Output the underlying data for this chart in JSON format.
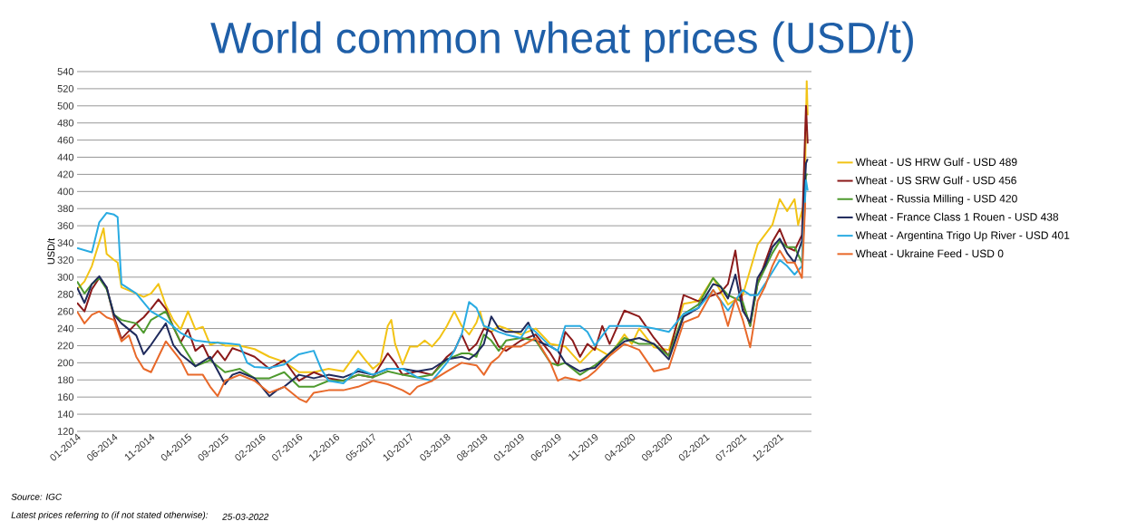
{
  "chart_data": {
    "type": "line",
    "title": "World common wheat prices (USD/t)",
    "ylabel": "USD/t",
    "annotations": [
      "Source: IGC",
      "Latest prices referring to (if not stated otherwise):",
      "25-03-2022"
    ],
    "xlim": [
      "2014-01",
      "2022-04-10"
    ],
    "ylim": [
      120,
      540
    ],
    "yticks": [
      120,
      140,
      160,
      180,
      200,
      220,
      240,
      260,
      280,
      300,
      320,
      340,
      360,
      380,
      400,
      420,
      440,
      460,
      480,
      500,
      520,
      540
    ],
    "xticks": [
      {
        "value": "2014-01",
        "label": "01-2014"
      },
      {
        "value": "2014-06",
        "label": "06-2014"
      },
      {
        "value": "2014-11",
        "label": "11-2014"
      },
      {
        "value": "2015-04",
        "label": "04-2015"
      },
      {
        "value": "2015-09",
        "label": "09-2015"
      },
      {
        "value": "2016-02",
        "label": "02-2016"
      },
      {
        "value": "2016-07",
        "label": "07-2016"
      },
      {
        "value": "2016-12",
        "label": "12-2016"
      },
      {
        "value": "2017-05",
        "label": "05-2017"
      },
      {
        "value": "2017-10",
        "label": "10-2017"
      },
      {
        "value": "2018-03",
        "label": "03-2018"
      },
      {
        "value": "2018-08",
        "label": "08-2018"
      },
      {
        "value": "2019-01",
        "label": "01-2019"
      },
      {
        "value": "2019-06",
        "label": "06-2019"
      },
      {
        "value": "2019-11",
        "label": "11-2019"
      },
      {
        "value": "2020-04",
        "label": "04-2020"
      },
      {
        "value": "2020-09",
        "label": "09-2020"
      },
      {
        "value": "2021-02",
        "label": "02-2021"
      },
      {
        "value": "2021-07",
        "label": "07-2021"
      },
      {
        "value": "2021-12",
        "label": "12-2021"
      }
    ],
    "grid": "y",
    "legend": "right",
    "series": [
      {
        "name": "Wheat - US HRW Gulf - USD 489",
        "color": "#f2c314",
        "x": [
          "2014-01",
          "2014-02",
          "2014-03",
          "2014-04",
          "2014-04-19",
          "2014-05",
          "2014-06",
          "2014-06-16",
          "2014-07",
          "2014-09",
          "2014-10",
          "2014-11",
          "2014-12",
          "2015-01",
          "2015-02",
          "2015-03",
          "2015-04",
          "2015-05",
          "2015-06",
          "2015-07",
          "2015-08",
          "2015-09",
          "2015-11",
          "2016-01",
          "2016-03",
          "2016-05",
          "2016-07",
          "2016-09",
          "2016-11",
          "2017-01",
          "2017-03",
          "2017-04",
          "2017-05",
          "2017-06",
          "2017-07",
          "2017-07-16",
          "2017-08",
          "2017-09",
          "2017-10",
          "2017-11",
          "2017-12",
          "2018-01",
          "2018-02",
          "2018-03",
          "2018-04",
          "2018-05",
          "2018-06",
          "2018-07",
          "2018-07-16",
          "2018-08",
          "2018-09",
          "2018-10",
          "2018-11",
          "2019-01",
          "2019-03",
          "2019-05",
          "2019-07",
          "2019-09",
          "2019-11",
          "2020-01",
          "2020-03",
          "2020-04",
          "2020-05",
          "2020-07",
          "2020-09",
          "2020-11",
          "2021-01",
          "2021-03",
          "2021-05",
          "2021-07",
          "2021-09",
          "2021-11",
          "2021-12",
          "2022-01",
          "2022-02",
          "2022-02-16",
          "2022-03",
          "2022-03-12",
          "2022-03-21",
          "2022-03-25"
        ],
        "values": [
          286,
          295,
          313,
          341,
          357,
          327,
          320,
          317,
          288,
          281,
          277,
          281,
          292,
          267,
          250,
          239,
          260,
          239,
          242,
          221,
          224,
          220,
          220,
          216,
          207,
          201,
          189,
          189,
          193,
          190,
          214,
          203,
          193,
          200,
          243,
          250,
          222,
          198,
          219,
          219,
          226,
          219,
          229,
          243,
          260,
          243,
          233,
          247,
          260,
          243,
          236,
          243,
          240,
          233,
          240,
          222,
          219,
          200,
          218,
          208,
          233,
          222,
          240,
          218,
          215,
          269,
          272,
          299,
          268,
          279,
          338,
          361,
          391,
          377,
          391,
          361,
          377,
          387,
          529,
          489
        ]
      },
      {
        "name": "Wheat - US SRW Gulf - USD 456",
        "color": "#8b1a1a",
        "x": [
          "2014-01",
          "2014-02",
          "2014-03",
          "2014-04",
          "2014-05",
          "2014-06",
          "2014-07",
          "2014-09",
          "2014-10",
          "2014-11",
          "2014-12",
          "2015-01",
          "2015-02",
          "2015-03",
          "2015-04",
          "2015-05",
          "2015-06",
          "2015-07",
          "2015-08",
          "2015-09",
          "2015-10",
          "2015-11",
          "2016-01",
          "2016-03",
          "2016-05",
          "2016-07",
          "2016-09",
          "2016-11",
          "2017-01",
          "2017-03",
          "2017-05",
          "2017-07",
          "2017-08",
          "2017-09",
          "2017-11",
          "2018-01",
          "2018-03",
          "2018-04",
          "2018-05",
          "2018-06",
          "2018-07",
          "2018-08",
          "2018-09",
          "2018-10",
          "2018-11",
          "2019-01",
          "2019-03",
          "2019-05",
          "2019-06",
          "2019-07",
          "2019-08",
          "2019-09",
          "2019-10",
          "2019-11",
          "2019-12",
          "2020-01",
          "2020-03",
          "2020-05",
          "2020-07",
          "2020-09",
          "2020-10",
          "2020-11",
          "2021-01",
          "2021-03",
          "2021-04",
          "2021-05",
          "2021-06",
          "2021-07",
          "2021-08",
          "2021-09",
          "2021-10",
          "2021-11",
          "2021-12",
          "2022-01",
          "2022-02",
          "2022-03",
          "2022-03-18",
          "2022-03-25"
        ],
        "values": [
          270,
          260,
          286,
          299,
          288,
          253,
          228,
          246,
          253,
          263,
          274,
          263,
          242,
          224,
          239,
          214,
          221,
          203,
          214,
          203,
          217,
          214,
          207,
          193,
          203,
          179,
          189,
          182,
          179,
          186,
          183,
          211,
          200,
          186,
          190,
          186,
          207,
          214,
          233,
          214,
          222,
          240,
          236,
          219,
          214,
          226,
          233,
          211,
          197,
          236,
          226,
          207,
          222,
          215,
          243,
          222,
          261,
          254,
          229,
          208,
          243,
          279,
          272,
          279,
          282,
          292,
          331,
          268,
          243,
          292,
          317,
          341,
          356,
          335,
          331,
          349,
          500,
          456
        ]
      },
      {
        "name": "Wheat - Russia Milling - USD 420",
        "color": "#4e9a2e",
        "x": [
          "2014-01",
          "2014-02",
          "2014-03",
          "2014-04",
          "2014-05",
          "2014-06",
          "2014-07",
          "2014-09",
          "2014-10",
          "2014-11",
          "2015-01",
          "2015-02",
          "2015-03",
          "2015-05",
          "2015-07",
          "2015-09",
          "2015-11",
          "2016-01",
          "2016-03",
          "2016-05",
          "2016-07",
          "2016-09",
          "2016-11",
          "2017-01",
          "2017-03",
          "2017-05",
          "2017-07",
          "2017-09",
          "2017-11",
          "2018-01",
          "2018-03",
          "2018-05",
          "2018-06",
          "2018-07",
          "2018-08",
          "2018-09",
          "2018-10",
          "2018-11",
          "2019-01",
          "2019-03",
          "2019-05",
          "2019-06",
          "2019-07",
          "2019-09",
          "2019-11",
          "2020-01",
          "2020-03",
          "2020-05",
          "2020-07",
          "2020-09",
          "2020-11",
          "2021-01",
          "2021-03",
          "2021-05",
          "2021-07",
          "2021-08",
          "2021-09",
          "2021-11",
          "2021-12",
          "2022-01",
          "2022-02",
          "2022-03",
          "2022-03-18",
          "2022-03-25"
        ],
        "values": [
          295,
          281,
          292,
          299,
          286,
          256,
          250,
          246,
          235,
          250,
          260,
          242,
          224,
          196,
          203,
          189,
          193,
          182,
          182,
          189,
          172,
          172,
          179,
          179,
          186,
          183,
          190,
          186,
          183,
          186,
          204,
          211,
          211,
          207,
          233,
          226,
          214,
          226,
          229,
          226,
          200,
          197,
          200,
          186,
          197,
          211,
          229,
          222,
          222,
          208,
          257,
          268,
          299,
          279,
          271,
          243,
          292,
          328,
          342,
          335,
          335,
          317,
          420,
          420
        ]
      },
      {
        "name": "Wheat - France Class 1 Rouen - USD 438",
        "color": "#1f2a5c",
        "x": [
          "2014-01",
          "2014-02",
          "2014-03",
          "2014-04",
          "2014-05",
          "2014-06",
          "2014-07",
          "2014-09",
          "2014-10",
          "2014-11",
          "2015-01",
          "2015-02",
          "2015-03",
          "2015-05",
          "2015-07",
          "2015-09",
          "2015-10",
          "2015-11",
          "2016-01",
          "2016-03",
          "2016-04",
          "2016-05",
          "2016-07",
          "2016-09",
          "2016-11",
          "2017-01",
          "2017-03",
          "2017-05",
          "2017-07",
          "2017-09",
          "2017-11",
          "2018-01",
          "2018-03",
          "2018-05",
          "2018-06",
          "2018-07",
          "2018-08",
          "2018-09",
          "2018-10",
          "2018-11",
          "2019-01",
          "2019-02",
          "2019-03",
          "2019-05",
          "2019-06",
          "2019-07",
          "2019-09",
          "2019-10",
          "2019-11",
          "2020-01",
          "2020-03",
          "2020-05",
          "2020-07",
          "2020-09",
          "2020-11",
          "2021-01",
          "2021-03",
          "2021-04",
          "2021-05",
          "2021-06",
          "2021-07",
          "2021-08",
          "2021-09",
          "2021-10",
          "2021-11",
          "2021-12",
          "2022-01",
          "2022-02",
          "2022-03",
          "2022-03-18",
          "2022-03-25"
        ],
        "values": [
          288,
          270,
          292,
          301,
          288,
          256,
          246,
          232,
          210,
          221,
          246,
          221,
          210,
          196,
          207,
          175,
          186,
          189,
          182,
          161,
          168,
          172,
          186,
          182,
          186,
          183,
          190,
          186,
          193,
          193,
          190,
          193,
          204,
          207,
          204,
          211,
          222,
          254,
          240,
          236,
          236,
          247,
          226,
          219,
          214,
          200,
          190,
          193,
          194,
          211,
          225,
          229,
          222,
          204,
          254,
          264,
          292,
          289,
          275,
          303,
          261,
          247,
          299,
          313,
          335,
          345,
          328,
          317,
          342,
          433,
          438
        ]
      },
      {
        "name": "Wheat - Argentina Trigo Up River - USD 401",
        "color": "#29abe2",
        "x": [
          "2014-01",
          "2014-03",
          "2014-04",
          "2014-05",
          "2014-06",
          "2014-06-16",
          "2014-07",
          "2014-09",
          "2014-11",
          "2015-01",
          "2015-03",
          "2015-05",
          "2015-07",
          "2015-09",
          "2015-11",
          "2015-12",
          "2016-01",
          "2016-03",
          "2016-05",
          "2016-07",
          "2016-09",
          "2016-10",
          "2016-11",
          "2017-01",
          "2017-03",
          "2017-05",
          "2017-07",
          "2017-09",
          "2017-11",
          "2018-01",
          "2018-03",
          "2018-04",
          "2018-05",
          "2018-06",
          "2018-07",
          "2018-08",
          "2018-09",
          "2018-10",
          "2018-11",
          "2019-01",
          "2019-02",
          "2019-03",
          "2019-05",
          "2019-06",
          "2019-07",
          "2019-09",
          "2019-10",
          "2019-11",
          "2020-01",
          "2020-03",
          "2020-05",
          "2020-07",
          "2020-09",
          "2020-11",
          "2021-01",
          "2021-03",
          "2021-05",
          "2021-07",
          "2021-08",
          "2021-09",
          "2021-10",
          "2021-11",
          "2021-12",
          "2022-01",
          "2022-02",
          "2022-03",
          "2022-03-18",
          "2022-03-25"
        ],
        "values": [
          334,
          329,
          364,
          375,
          373,
          370,
          292,
          281,
          260,
          250,
          235,
          226,
          224,
          223,
          221,
          200,
          195,
          194,
          198,
          210,
          214,
          193,
          179,
          176,
          193,
          186,
          193,
          193,
          183,
          179,
          200,
          214,
          233,
          271,
          264,
          243,
          240,
          236,
          233,
          229,
          243,
          236,
          219,
          214,
          243,
          243,
          236,
          220,
          243,
          243,
          243,
          240,
          236,
          257,
          264,
          285,
          261,
          285,
          279,
          279,
          292,
          306,
          320,
          313,
          303,
          313,
          413,
          401
        ]
      },
      {
        "name": "Wheat - Ukraine Feed - USD 0",
        "color": "#e8692a",
        "x": [
          "2014-01",
          "2014-02",
          "2014-03",
          "2014-04",
          "2014-05",
          "2014-06",
          "2014-07",
          "2014-08",
          "2014-09",
          "2014-10",
          "2014-11",
          "2014-12",
          "2015-01",
          "2015-02",
          "2015-03",
          "2015-04",
          "2015-05",
          "2015-06",
          "2015-07",
          "2015-08",
          "2015-09",
          "2015-11",
          "2016-01",
          "2016-03",
          "2016-05",
          "2016-07",
          "2016-08",
          "2016-09",
          "2016-11",
          "2017-01",
          "2017-03",
          "2017-05",
          "2017-07",
          "2017-09",
          "2017-10",
          "2017-11",
          "2018-01",
          "2018-03",
          "2018-05",
          "2018-07",
          "2018-08",
          "2018-09",
          "2018-10",
          "2018-11",
          "2019-01",
          "2019-03",
          "2019-05",
          "2019-06",
          "2019-07",
          "2019-09",
          "2019-10",
          "2019-11",
          "2020-01",
          "2020-03",
          "2020-05",
          "2020-07",
          "2020-09",
          "2020-11",
          "2021-01",
          "2021-03",
          "2021-04",
          "2021-05",
          "2021-06",
          "2021-07",
          "2021-08",
          "2021-09",
          "2021-10",
          "2021-11",
          "2021-12",
          "2022-01",
          "2022-02",
          "2022-03",
          "2022-03-15"
        ],
        "values": [
          260,
          246,
          256,
          260,
          253,
          250,
          225,
          232,
          207,
          193,
          189,
          207,
          225,
          214,
          203,
          186,
          186,
          186,
          172,
          161,
          179,
          186,
          179,
          165,
          172,
          158,
          154,
          165,
          168,
          168,
          172,
          179,
          175,
          168,
          163,
          172,
          179,
          190,
          200,
          197,
          186,
          200,
          207,
          219,
          219,
          229,
          200,
          179,
          183,
          179,
          183,
          190,
          208,
          222,
          215,
          190,
          194,
          247,
          254,
          285,
          272,
          243,
          275,
          250,
          218,
          272,
          289,
          313,
          331,
          317,
          317,
          299,
          387
        ]
      }
    ]
  }
}
